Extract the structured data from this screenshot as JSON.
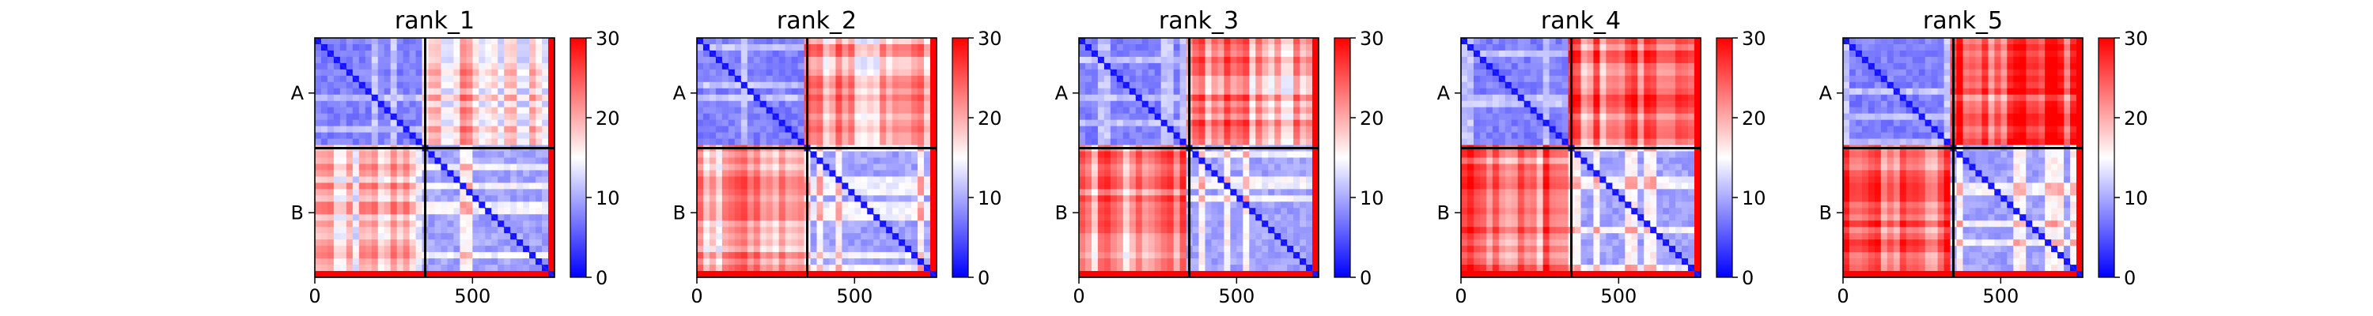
{
  "figure": {
    "type": "heatmap",
    "colormap": "bwr",
    "colorbar_ticks": [
      "0",
      "10",
      "20",
      "30"
    ],
    "x_ticks": [
      "0",
      "500"
    ],
    "y_ticks": [
      "A",
      "B"
    ]
  },
  "chart_data": [
    {
      "type": "heatmap",
      "title": "rank_1",
      "chains": [
        {
          "name": "A",
          "length": 350
        },
        {
          "name": "B",
          "length": 410
        }
      ],
      "x_range": [
        0,
        760
      ],
      "x_ticks": [
        0,
        500
      ],
      "y_tick_labels": [
        "A",
        "B"
      ],
      "value_range": [
        0,
        30
      ],
      "colorbar_ticks": [
        0,
        10,
        20,
        30
      ],
      "mean_block_values": {
        "A-A": 6,
        "A-B": 18,
        "B-A": 18,
        "B-B": 8
      },
      "chain_B_terminal_tail": {
        "start": 735,
        "value": 30
      }
    },
    {
      "type": "heatmap",
      "title": "rank_2",
      "chains": [
        {
          "name": "A",
          "length": 350
        },
        {
          "name": "B",
          "length": 410
        }
      ],
      "x_range": [
        0,
        760
      ],
      "x_ticks": [
        0,
        500
      ],
      "y_tick_labels": [
        "A",
        "B"
      ],
      "value_range": [
        0,
        30
      ],
      "colorbar_ticks": [
        0,
        10,
        20,
        30
      ],
      "mean_block_values": {
        "A-A": 6,
        "A-B": 20,
        "B-A": 20,
        "B-B": 8
      },
      "chain_B_terminal_tail": {
        "start": 735,
        "value": 30
      }
    },
    {
      "type": "heatmap",
      "title": "rank_3",
      "chains": [
        {
          "name": "A",
          "length": 350
        },
        {
          "name": "B",
          "length": 410
        }
      ],
      "x_range": [
        0,
        760
      ],
      "x_ticks": [
        0,
        500
      ],
      "y_tick_labels": [
        "A",
        "B"
      ],
      "value_range": [
        0,
        30
      ],
      "colorbar_ticks": [
        0,
        10,
        20,
        30
      ],
      "mean_block_values": {
        "A-A": 6,
        "A-B": 21,
        "B-A": 21,
        "B-B": 8
      },
      "chain_B_terminal_tail": {
        "start": 735,
        "value": 30
      }
    },
    {
      "type": "heatmap",
      "title": "rank_4",
      "chains": [
        {
          "name": "A",
          "length": 350
        },
        {
          "name": "B",
          "length": 410
        }
      ],
      "x_range": [
        0,
        760
      ],
      "x_ticks": [
        0,
        500
      ],
      "y_tick_labels": [
        "A",
        "B"
      ],
      "value_range": [
        0,
        30
      ],
      "colorbar_ticks": [
        0,
        10,
        20,
        30
      ],
      "mean_block_values": {
        "A-A": 6,
        "A-B": 23,
        "B-A": 23,
        "B-B": 8
      },
      "chain_B_terminal_tail": {
        "start": 735,
        "value": 30
      }
    },
    {
      "type": "heatmap",
      "title": "rank_5",
      "chains": [
        {
          "name": "A",
          "length": 350
        },
        {
          "name": "B",
          "length": 410
        }
      ],
      "x_range": [
        0,
        760
      ],
      "x_ticks": [
        0,
        500
      ],
      "y_tick_labels": [
        "A",
        "B"
      ],
      "value_range": [
        0,
        30
      ],
      "colorbar_ticks": [
        0,
        10,
        20,
        30
      ],
      "mean_block_values": {
        "A-A": 6,
        "A-B": 25,
        "B-A": 25,
        "B-B": 8
      },
      "chain_B_terminal_tail": {
        "start": 735,
        "value": 30
      }
    }
  ]
}
